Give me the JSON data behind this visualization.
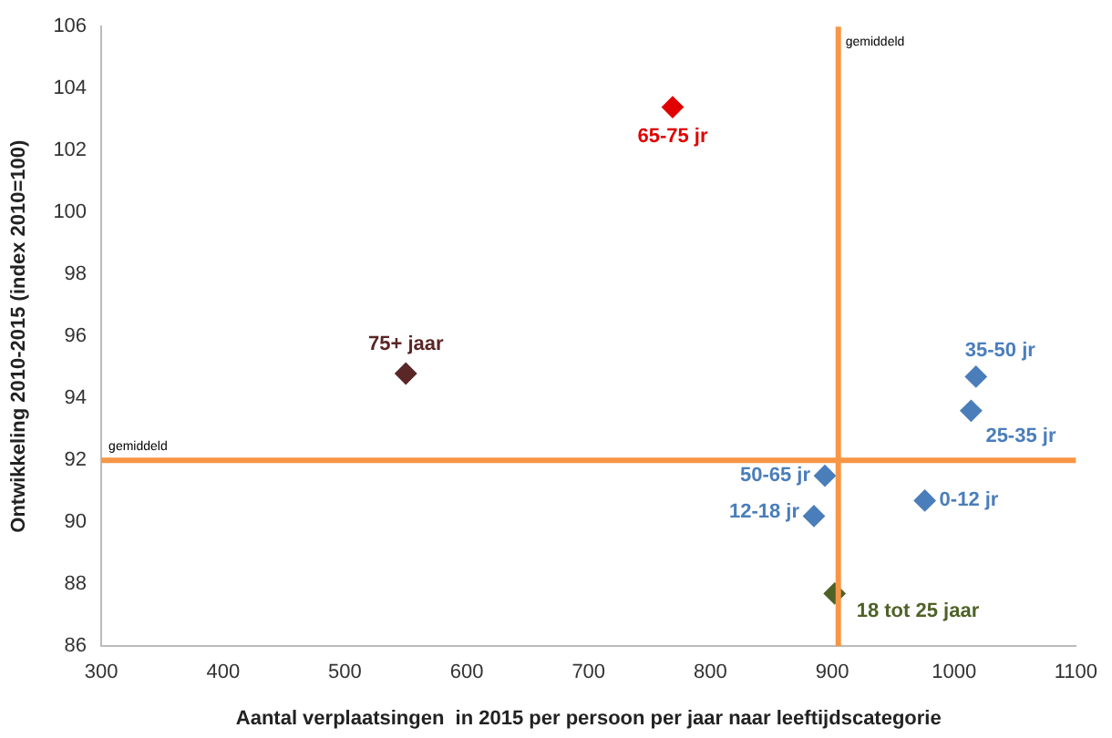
{
  "chart_data": {
    "type": "scatter",
    "xlabel": "Aantal verplaatsingen  in 2015 per persoon per jaar naar leeftijdscategorie",
    "ylabel": "Ontwikkeling 2010-2015 (index 2010=100)",
    "xlim": [
      300,
      1100
    ],
    "xticks": [
      300,
      400,
      500,
      600,
      700,
      800,
      900,
      1000,
      1100
    ],
    "ylim": [
      86,
      106
    ],
    "yticks": [
      86,
      88,
      90,
      92,
      94,
      96,
      98,
      100,
      102,
      104,
      106
    ],
    "grid": false,
    "legend": false,
    "marker": "diamond",
    "series": [
      {
        "name": "65-75 jr",
        "color": "#e00000",
        "x": [
          769
        ],
        "values": [
          103.4
        ]
      },
      {
        "name": "75+ jaar",
        "color": "#5a2626",
        "x": [
          550
        ],
        "values": [
          94.8
        ]
      },
      {
        "name": "35-50 jr",
        "color": "#4a7ebb",
        "x": [
          1018
        ],
        "values": [
          94.7
        ]
      },
      {
        "name": "25-35 jr",
        "color": "#4a7ebb",
        "x": [
          1014
        ],
        "values": [
          93.6
        ]
      },
      {
        "name": "50-65 jr",
        "color": "#4a7ebb",
        "x": [
          894
        ],
        "values": [
          91.5
        ]
      },
      {
        "name": "12-18 jr",
        "color": "#4a7ebb",
        "x": [
          885
        ],
        "values": [
          90.2
        ]
      },
      {
        "name": "0-12 jr",
        "color": "#4a7ebb",
        "x": [
          976
        ],
        "values": [
          90.7
        ]
      },
      {
        "name": "18 tot 25 jaar",
        "color": "#4f6228",
        "x": [
          902
        ],
        "values": [
          87.7
        ]
      }
    ],
    "ref_lines": [
      {
        "axis": "x",
        "value": 905,
        "label": "gemiddeld",
        "color": "#f79646"
      },
      {
        "axis": "y",
        "value": 92,
        "label": "gemiddeld",
        "color": "#f79646"
      }
    ]
  }
}
